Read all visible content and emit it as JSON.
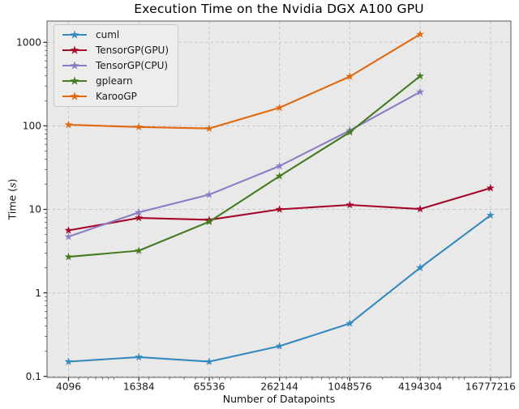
{
  "style": {
    "figure_bg": "#ffffff",
    "plot_bg": "#e9e9e9",
    "grid_color": "#c6c6c6",
    "spine_color": "#5a5a5a",
    "tick_color": "#222222",
    "text_color": "#111111",
    "legend_bg": "#ededeb",
    "legend_border": "#c8c8c8"
  },
  "chart_data": {
    "type": "line",
    "title": "Execution Time on the Nvidia DGX A100 GPU",
    "xlabel": "Number of Datapoints",
    "ylabel": "Time (s)",
    "ylabel_prefix": "Time (",
    "ylabel_math": "s",
    "ylabel_suffix": ")",
    "x_scale": "log",
    "y_scale": "log",
    "grid": true,
    "legend_position": "upper-left",
    "categories": [
      4096,
      16384,
      65536,
      262144,
      1048576,
      4194304,
      16777216
    ],
    "x_tick_labels": [
      "4096",
      "16384",
      "65536",
      "262144",
      "1048576",
      "4194304",
      "16777216"
    ],
    "y_ticks": [
      0.1,
      1,
      10,
      100,
      1000
    ],
    "y_tick_labels": [
      "0.1",
      "1",
      "10",
      "100",
      "1000"
    ],
    "ylim": [
      0.095,
      1800
    ],
    "series": [
      {
        "name": "cuml",
        "color": "#348abd",
        "marker": "star",
        "values": [
          0.15,
          0.17,
          0.15,
          0.23,
          0.43,
          2.0,
          8.5
        ]
      },
      {
        "name": "TensorGP(GPU)",
        "color": "#a60628",
        "marker": "star",
        "values": [
          5.6,
          7.9,
          7.5,
          10.0,
          11.3,
          10.1,
          18
        ]
      },
      {
        "name": "TensorGP(CPU)",
        "color": "#8b7cc3",
        "marker": "star",
        "values": [
          4.7,
          9.2,
          15,
          33,
          88,
          255
        ]
      },
      {
        "name": "gplearn",
        "color": "#447a20",
        "marker": "star",
        "values": [
          2.7,
          3.2,
          7.1,
          25,
          84,
          395
        ]
      },
      {
        "name": "KarooGP",
        "color": "#e0690f",
        "marker": "star",
        "values": [
          103,
          97,
          93,
          165,
          390,
          1250
        ]
      }
    ]
  }
}
